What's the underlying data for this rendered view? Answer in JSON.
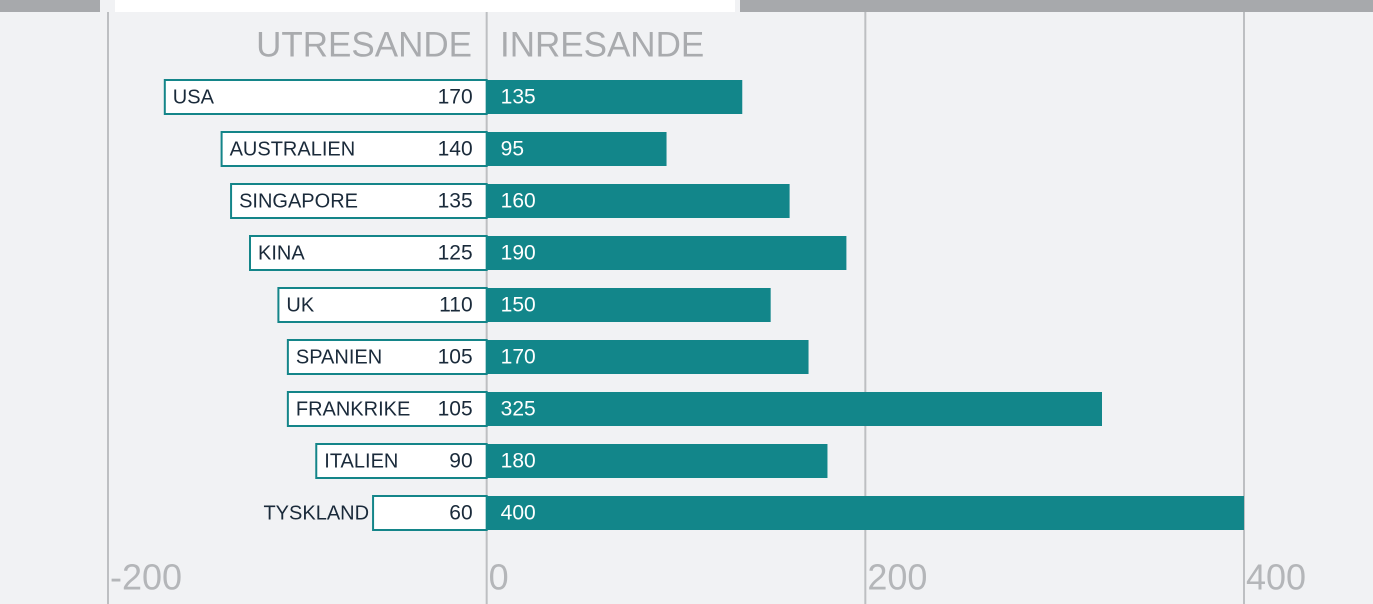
{
  "chart_data": {
    "type": "diverging-bar",
    "categories": [
      "USA",
      "AUSTRALIEN",
      "SINGAPORE",
      "KINA",
      "UK",
      "SPANIEN",
      "FRANKRIKE",
      "ITALIEN",
      "TYSKLAND"
    ],
    "series": [
      {
        "name": "UTRESANDE",
        "color": "#ffffff",
        "border": "#148589",
        "values": [
          170,
          140,
          135,
          125,
          110,
          105,
          105,
          90,
          60
        ]
      },
      {
        "name": "INRESANDE",
        "color": "#12868a",
        "values": [
          135,
          95,
          160,
          190,
          150,
          170,
          325,
          180,
          400
        ]
      }
    ],
    "xlim": [
      -200,
      400
    ],
    "xticks": [
      -200,
      0,
      200,
      400
    ],
    "grid": true
  }
}
